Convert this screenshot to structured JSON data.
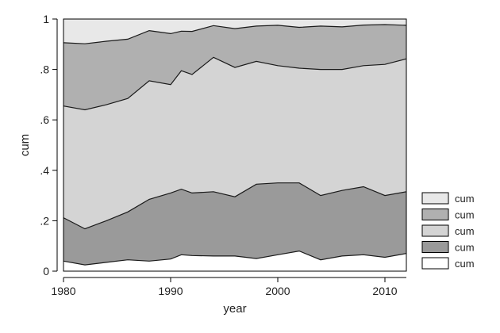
{
  "chart_data": {
    "type": "area",
    "stacked": true,
    "title": "",
    "xlabel": "year",
    "ylabel": "cum",
    "xlim": [
      1980,
      2012
    ],
    "ylim": [
      0,
      1
    ],
    "x_ticks": [
      1980,
      1990,
      2000,
      2010
    ],
    "x_tick_labels": [
      "1980",
      "1990",
      "2000",
      "2010"
    ],
    "y_ticks": [
      0,
      0.2,
      0.4,
      0.6,
      0.8,
      1
    ],
    "y_tick_labels": [
      "0",
      ".2",
      ".4",
      ".6",
      ".8",
      "1"
    ],
    "grid": false,
    "legend_position": "right-bottom",
    "x": [
      1980,
      1982,
      1984,
      1986,
      1988,
      1990,
      1991,
      1992,
      1994,
      1996,
      1998,
      2000,
      2002,
      2004,
      2006,
      2008,
      2010,
      2012
    ],
    "series": [
      {
        "name": "cum",
        "color": "#ffffff",
        "values": [
          0.04,
          0.025,
          0.035,
          0.045,
          0.04,
          0.048,
          0.065,
          0.062,
          0.06,
          0.06,
          0.05,
          0.065,
          0.08,
          0.045,
          0.06,
          0.065,
          0.055,
          0.07
        ]
      },
      {
        "name": "cum",
        "color": "#9a9a9a",
        "values": [
          0.212,
          0.168,
          0.2,
          0.235,
          0.285,
          0.31,
          0.325,
          0.31,
          0.315,
          0.295,
          0.345,
          0.35,
          0.35,
          0.3,
          0.32,
          0.335,
          0.3,
          0.315
        ]
      },
      {
        "name": "cum",
        "color": "#d4d4d4",
        "values": [
          0.655,
          0.64,
          0.66,
          0.685,
          0.755,
          0.74,
          0.795,
          0.78,
          0.848,
          0.808,
          0.832,
          0.815,
          0.805,
          0.8,
          0.8,
          0.815,
          0.82,
          0.842
        ]
      },
      {
        "name": "cum",
        "color": "#b0b0b0",
        "values": [
          0.906,
          0.902,
          0.912,
          0.92,
          0.954,
          0.942,
          0.952,
          0.951,
          0.974,
          0.962,
          0.972,
          0.975,
          0.967,
          0.972,
          0.969,
          0.976,
          0.978,
          0.975
        ]
      },
      {
        "name": "cum",
        "color": "#e8e8e8",
        "values": [
          1,
          1,
          1,
          1,
          1,
          1,
          1,
          1,
          1,
          1,
          1,
          1,
          1,
          1,
          1,
          1,
          1,
          1
        ]
      }
    ],
    "legend_order": [
      4,
      3,
      2,
      1,
      0
    ]
  }
}
